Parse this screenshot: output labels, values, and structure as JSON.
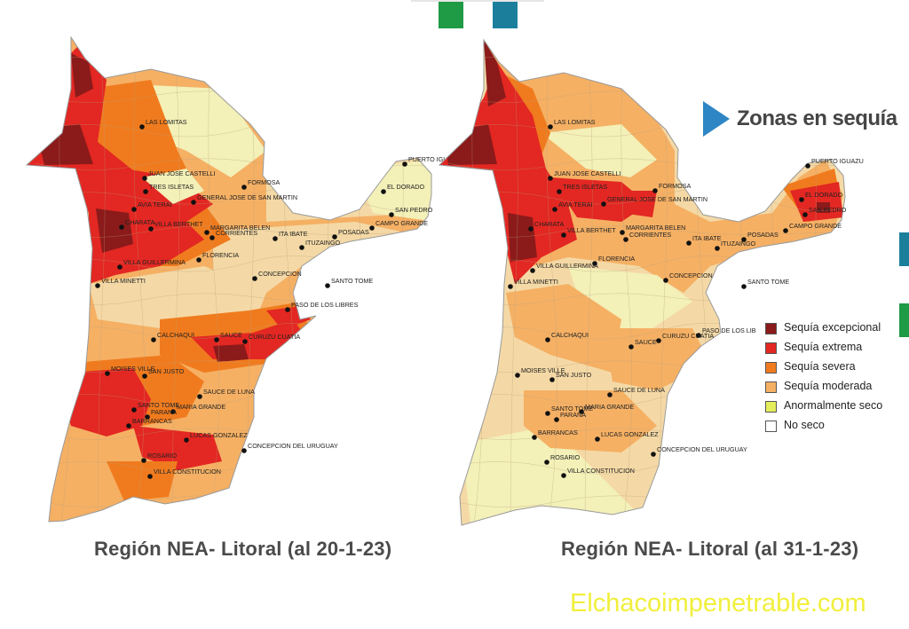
{
  "header": {
    "callout": "Zonas en sequía"
  },
  "maps": [
    {
      "title": "Región NEA- Litoral (al 20-1-23)",
      "cities": [
        "LAS LOMITAS",
        "JUAN JOSE CASTELLI",
        "FORMOSA",
        "TRES ISLETAS",
        "GENERAL JOSE DE SAN MARTIN",
        "AVIA TERAI",
        "CHARATA",
        "VILLA BERTHET",
        "MARGARITA BELEN",
        "CORRIENTES",
        "ITA IBATE",
        "POSADAS",
        "CAMPO GRANDE",
        "SAN PEDRO",
        "EL DORADO",
        "PUERTO IGUAZU",
        "ITUZAINGO",
        "FLORENCIA",
        "VILLA GUILLERMINA",
        "VILLA MINETTI",
        "CONCEPCION",
        "SANTO TOME",
        "PASO DE LOS LIBRES",
        "CALCHAQUI",
        "SAUCE",
        "CURUZU CUATIA",
        "MOISES VILLE",
        "SAN JUSTO",
        "SAUCE DE LUNA",
        "SANTO TOME",
        "MARIA GRANDE",
        "PARANA",
        "BARRANCAS",
        "LUCAS GONZALEZ",
        "CONCEPCION DEL URUGUAY",
        "ROSARIO",
        "VILLA CONSTITUCION"
      ]
    },
    {
      "title": "Región NEA- Litoral (al 31-1-23)",
      "cities": [
        "LAS LOMITAS",
        "JUAN JOSE CASTELLI",
        "FORMOSA",
        "TRES ISLETAS",
        "GENERAL JOSE DE SAN MARTIN",
        "AVIA TERAI",
        "CHARATA",
        "VILLA BERTHET",
        "MARGARITA BELEN",
        "CORRIENTES",
        "ITA IBATE",
        "POSADAS",
        "CAMPO GRANDE",
        "SAN PEDRO",
        "EL DORADO",
        "PUERTO IGUAZU",
        "ITUZAINGO",
        "FLORENCIA",
        "VILLA GUILLERMINA",
        "VILLA MINETTI",
        "CONCEPCION",
        "SANTO TOME",
        "PASO DE LOS LIB",
        "CALCHAQUI",
        "SAUCE",
        "CURUZU CUATIA",
        "MOISES VILLE",
        "SAN JUSTO",
        "SAUCE DE LUNA",
        "SANTO TOME",
        "MARIA GRANDE",
        "PARANA",
        "BARRANCAS",
        "LUCAS GONZALEZ",
        "CONCEPCION DEL URUGUAY",
        "ROSARIO",
        "VILLA CONSTITUCION"
      ]
    }
  ],
  "legend": [
    {
      "label": "Sequía excepcional",
      "color": "#8b1a1a"
    },
    {
      "label": "Sequía extrema",
      "color": "#e32722"
    },
    {
      "label": "Sequía severa",
      "color": "#f07b1e"
    },
    {
      "label": "Sequía moderada",
      "color": "#f5b064"
    },
    {
      "label": "Anormalmente seco",
      "color": "#e4ee5a"
    },
    {
      "label": "No seco",
      "color": "#ffffff"
    }
  ],
  "watermark": "Elchacoimpenetrable.com",
  "colors": {
    "base": "#f4d9a6",
    "moderate": "#f5b064",
    "severe": "#f07b1e",
    "extreme": "#e32722",
    "exceptional": "#8b1a1a",
    "abnormal": "#f3f0b8",
    "accent_blue": "#2f86c4",
    "deco_green": "#1f9a45",
    "deco_teal": "#1b7f9c"
  }
}
